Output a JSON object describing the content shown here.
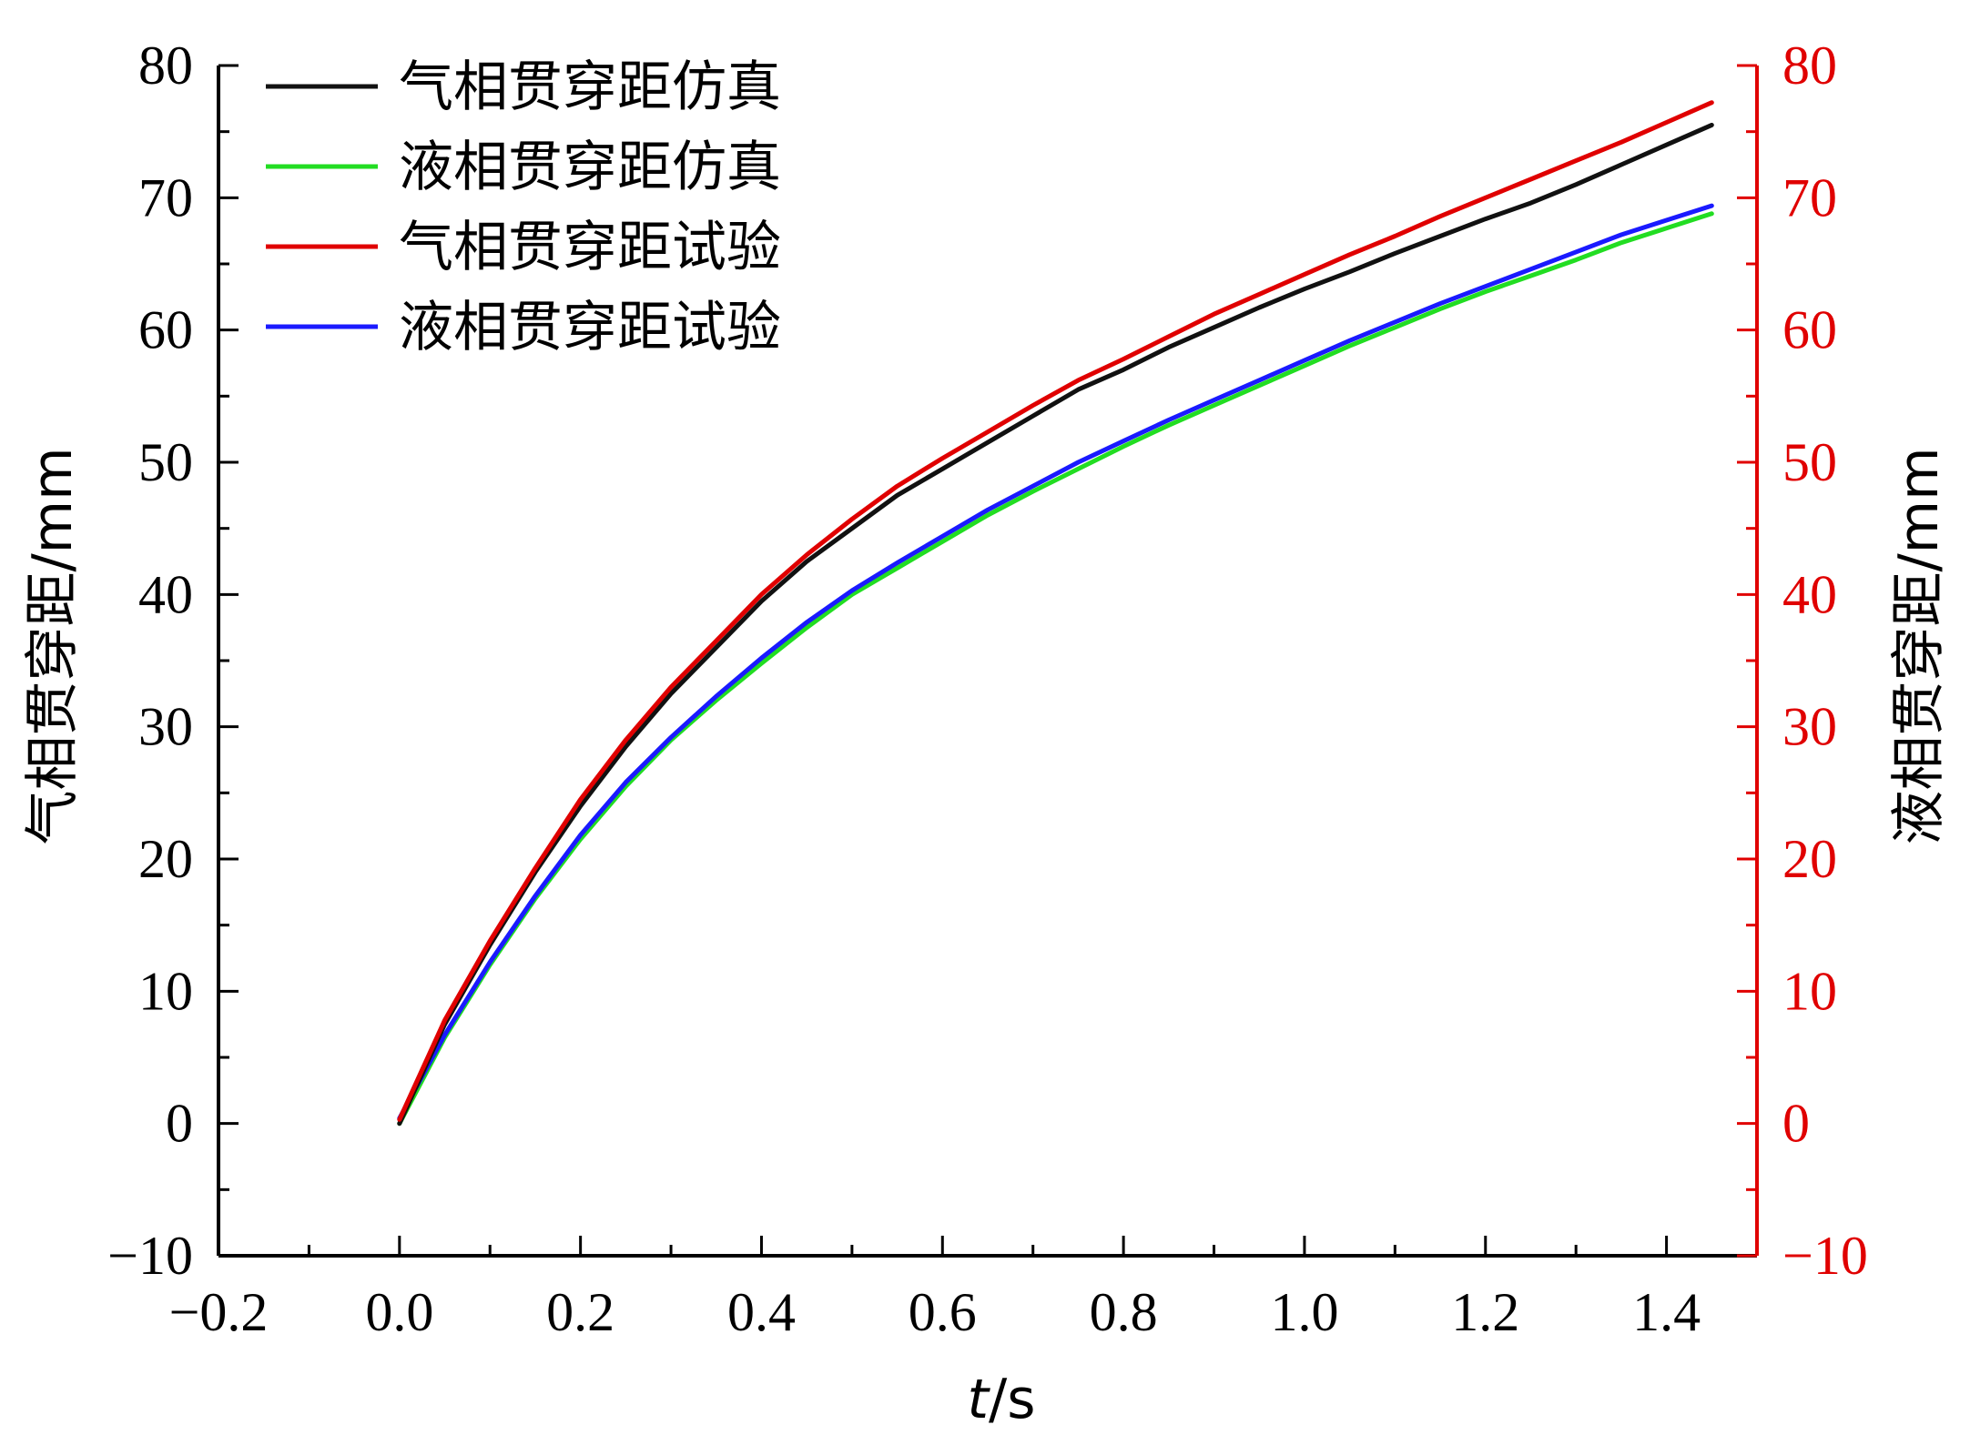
{
  "chart_data": {
    "type": "line",
    "xlabel": "t/s",
    "xlabel_italic_part": "t",
    "xlabel_unit_part": "/s",
    "ylabel_left": "气相贯穿距/mm",
    "ylabel_right": "液相贯穿距/mm",
    "xlim": [
      -0.2,
      1.5
    ],
    "ylim": [
      -10,
      80
    ],
    "x_ticks": [
      -0.2,
      0.0,
      0.2,
      0.4,
      0.6,
      0.8,
      1.0,
      1.2,
      1.4
    ],
    "x_tick_labels": [
      "−0.2",
      "0.0",
      "0.2",
      "0.4",
      "0.6",
      "0.8",
      "1.0",
      "1.2",
      "1.4"
    ],
    "y_ticks": [
      -10,
      0,
      10,
      20,
      30,
      40,
      50,
      60,
      70,
      80
    ],
    "y_tick_labels": [
      "−10",
      "0",
      "10",
      "20",
      "30",
      "40",
      "50",
      "60",
      "70",
      "80"
    ],
    "legend_position": "top-left",
    "grid": false,
    "colors": {
      "left_axis": "#000000",
      "right_axis": "#e00000"
    },
    "x": [
      0.0,
      0.05,
      0.1,
      0.15,
      0.2,
      0.25,
      0.3,
      0.35,
      0.4,
      0.45,
      0.5,
      0.55,
      0.6,
      0.65,
      0.7,
      0.75,
      0.8,
      0.85,
      0.9,
      0.95,
      1.0,
      1.05,
      1.1,
      1.15,
      1.2,
      1.25,
      1.3,
      1.35,
      1.4,
      1.45
    ],
    "series": [
      {
        "name": "气相贯穿距仿真",
        "color": "#111111",
        "values": [
          0,
          7.5,
          13.5,
          19,
          24,
          28.5,
          32.5,
          36,
          39.5,
          42.5,
          45,
          47.5,
          49.5,
          51.5,
          53.5,
          55.5,
          57,
          58.7,
          60.2,
          61.7,
          63.1,
          64.4,
          65.8,
          67.1,
          68.4,
          69.6,
          71,
          72.5,
          74,
          75.5
        ]
      },
      {
        "name": "液相贯穿距仿真",
        "color": "#22dd22",
        "values": [
          0,
          6.5,
          12,
          17,
          21.5,
          25.5,
          29,
          32,
          34.8,
          37.5,
          40,
          42,
          44,
          46,
          47.8,
          49.5,
          51.2,
          52.8,
          54.3,
          55.8,
          57.3,
          58.8,
          60.2,
          61.6,
          62.9,
          64.1,
          65.3,
          66.6,
          67.7,
          68.8
        ]
      },
      {
        "name": "气相贯穿距试验",
        "color": "#e00000",
        "values": [
          0.3,
          7.8,
          13.8,
          19.3,
          24.5,
          29,
          33,
          36.5,
          40,
          43,
          45.7,
          48.2,
          50.3,
          52.3,
          54.3,
          56.2,
          57.8,
          59.5,
          61.2,
          62.7,
          64.2,
          65.7,
          67.1,
          68.6,
          70,
          71.4,
          72.8,
          74.2,
          75.7,
          77.2
        ]
      },
      {
        "name": "液相贯穿距试验",
        "color": "#1a1aff",
        "values": [
          0.4,
          6.7,
          12.2,
          17.2,
          21.8,
          25.8,
          29.2,
          32.3,
          35.2,
          37.9,
          40.3,
          42.4,
          44.4,
          46.4,
          48.2,
          50,
          51.6,
          53.2,
          54.7,
          56.2,
          57.7,
          59.2,
          60.6,
          62,
          63.3,
          64.6,
          65.9,
          67.2,
          68.3,
          69.4
        ]
      }
    ]
  }
}
